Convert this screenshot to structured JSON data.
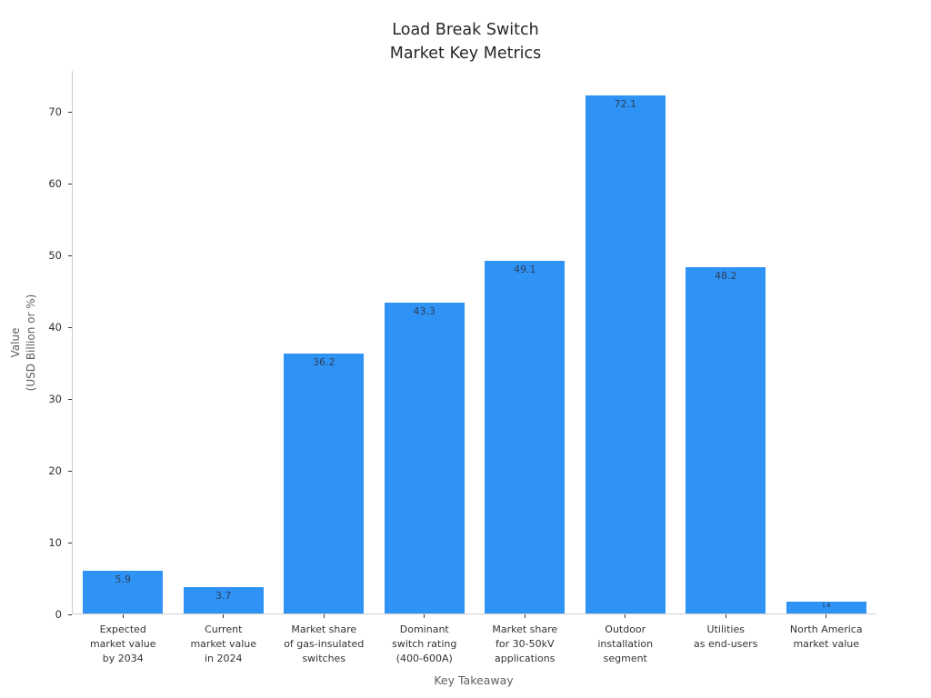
{
  "title": "Load Break Switch\nMarket Key Metrics",
  "chart_data": {
    "type": "bar",
    "title": "Load Break Switch Market Key Metrics",
    "xlabel": "Key Takeaway",
    "ylabel": "Value\n(USD Billion or %)",
    "categories": [
      "Expected\nmarket value\nby 2034",
      "Current\nmarket value\nin 2024",
      "Market share\nof gas-insulated\nswitches",
      "Dominant\nswitch rating\n(400-600A)",
      "Market share\nfor 30-50kV\napplications",
      "Outdoor\ninstallation\nsegment",
      "Utilities\nas end-users",
      "North America\nmarket value"
    ],
    "values": [
      5.9,
      3.7,
      36.2,
      43.3,
      49.1,
      72.1,
      48.2,
      1.6
    ],
    "bar_labels": [
      "5.9",
      "3.7",
      "36.2",
      "43.3",
      "49.1",
      "72.1",
      "48.2",
      "1.6"
    ],
    "yticks": [
      0,
      10,
      20,
      30,
      40,
      50,
      60,
      70
    ],
    "ylim": [
      0,
      75.7
    ],
    "bar_color": "#2e93f5",
    "grid": false,
    "legend_position": "none"
  }
}
